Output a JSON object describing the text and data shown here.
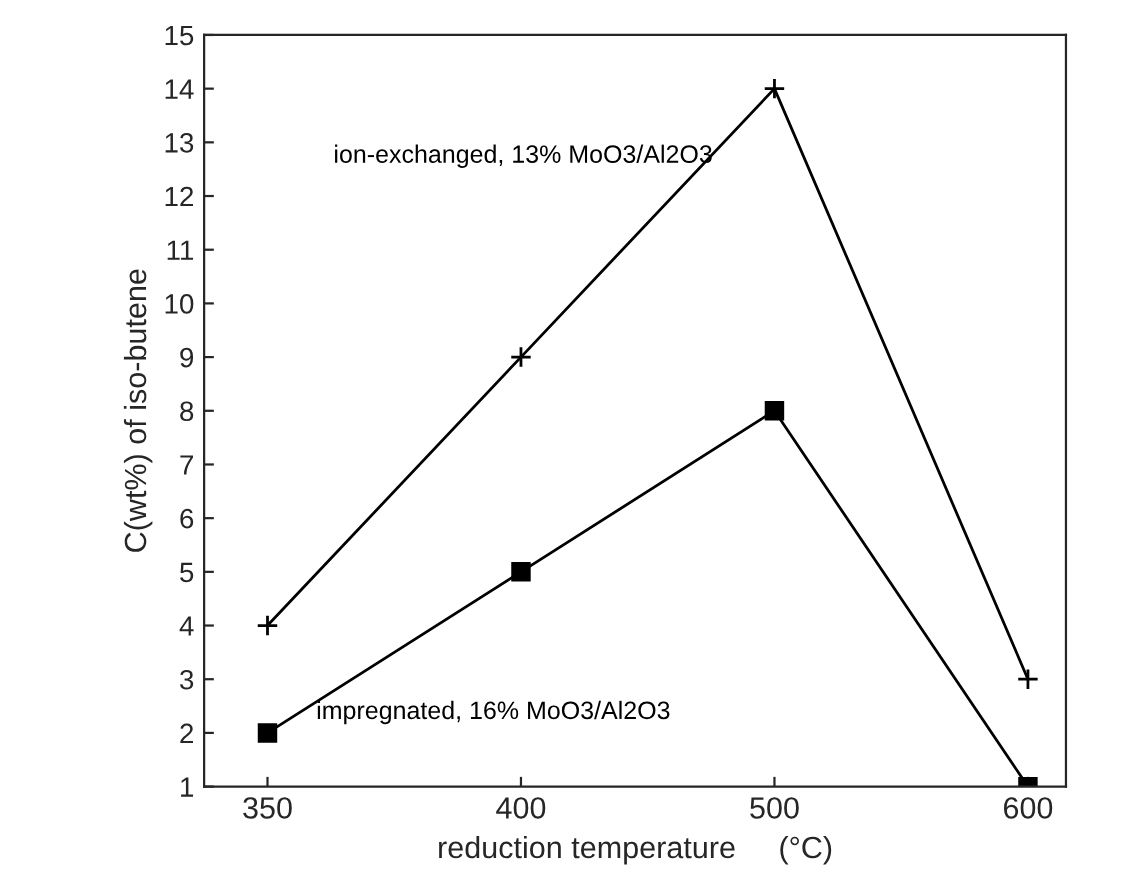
{
  "chart_data": {
    "type": "line",
    "xlabel": "reduction temperature     (°C)",
    "ylabel": "C(wt%) of iso-butene",
    "categories": [
      "350",
      "400",
      "500",
      "600"
    ],
    "series": [
      {
        "name": "ion-exchanged, 13% MoO3/Al2O3",
        "color": "#000000",
        "marker": "cross",
        "values": [
          4,
          9,
          14,
          3
        ]
      },
      {
        "name": "impregnated, 16% MoO3/Al2O3",
        "color": "#000000",
        "marker": "square",
        "values": [
          2,
          5,
          8,
          1
        ]
      }
    ],
    "ylim": [
      1,
      15
    ],
    "yticks": [
      1,
      2,
      3,
      4,
      5,
      6,
      7,
      8,
      9,
      10,
      11,
      12,
      13,
      14,
      15
    ],
    "grid": false,
    "legend": false,
    "line_style": "solid"
  }
}
